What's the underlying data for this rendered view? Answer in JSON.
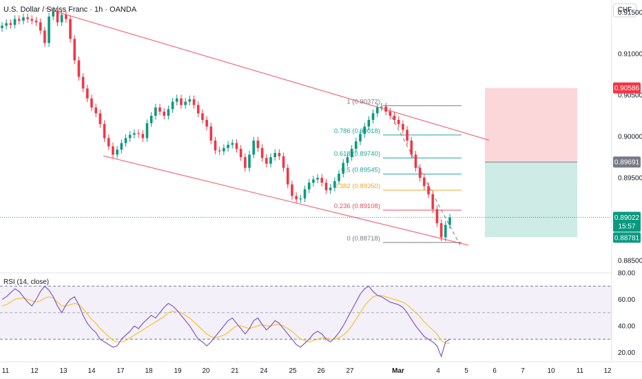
{
  "chart_data": {
    "type": "candlestick",
    "title": "U.S. Dollar / Swiss Franc · 1h · OANDA",
    "currency": "CHF",
    "y_ticks": [
      "0.91500",
      "0.91000",
      "0.90500",
      "0.90000",
      "0.89500",
      "0.88500"
    ],
    "x_ticks": [
      "11",
      "12",
      "13",
      "14",
      "17",
      "18",
      "19",
      "20",
      "21",
      "24",
      "25",
      "26",
      "27",
      "Mar",
      "4",
      "5",
      "6",
      "7",
      "10",
      "11",
      "12"
    ],
    "ylim": [
      0.8835,
      0.9165
    ],
    "price_badges": {
      "tp": "0.90586",
      "entry": "0.89691",
      "last": "0.89022",
      "countdown": "15:57",
      "stop": "0.88781"
    },
    "fib_levels": [
      {
        "label": "1 (0.90372)",
        "value": 0.90372,
        "color": "#787b86"
      },
      {
        "label": "0.786 (0.90018)",
        "value": 0.90018,
        "color": "#22a39a"
      },
      {
        "label": "0.618 (0.89740)",
        "value": 0.8974,
        "color": "#22a39a"
      },
      {
        "label": "0.5 (0.89545)",
        "value": 0.89545,
        "color": "#22a39a"
      },
      {
        "label": "0.382 (0.89350)",
        "value": 0.8935,
        "color": "#f2a626"
      },
      {
        "label": "0.236 (0.89108)",
        "value": 0.89108,
        "color": "#e84c5a"
      },
      {
        "label": "0 (0.88718)",
        "value": 0.88718,
        "color": "#787b86"
      }
    ],
    "price_series": [
      0.9134,
      0.9137,
      0.9135,
      0.9142,
      0.914,
      0.9144,
      0.9142,
      0.914,
      0.9138,
      0.9128,
      0.9113,
      0.9145,
      0.9152,
      0.9138,
      0.9147,
      0.9142,
      0.9118,
      0.9092,
      0.9072,
      0.9058,
      0.9046,
      0.9035,
      0.9028,
      0.9015,
      0.8998,
      0.8988,
      0.8978,
      0.8984,
      0.8992,
      0.8998,
      0.9002,
      0.9004,
      0.9003,
      0.8998,
      0.9016,
      0.9025,
      0.9035,
      0.903,
      0.9025,
      0.9033,
      0.9042,
      0.9046,
      0.9038,
      0.9042,
      0.9045,
      0.9038,
      0.9028,
      0.902,
      0.9012,
      0.8995,
      0.8983,
      0.8982,
      0.8986,
      0.899,
      0.8992,
      0.8985,
      0.8975,
      0.8962,
      0.8978,
      0.8995,
      0.8986,
      0.8974,
      0.8967,
      0.8975,
      0.898,
      0.8976,
      0.8962,
      0.8942,
      0.8928,
      0.8924,
      0.8925,
      0.8936,
      0.8944,
      0.8948,
      0.895,
      0.8944,
      0.8935,
      0.8938,
      0.8946,
      0.8955,
      0.8968,
      0.8975,
      0.8985,
      0.8994,
      0.9003,
      0.9012,
      0.902,
      0.9028,
      0.9035,
      0.9036,
      0.903,
      0.9025,
      0.902,
      0.9015,
      0.9008,
      0.8995,
      0.8978,
      0.8962,
      0.895,
      0.894,
      0.893,
      0.8912,
      0.8895,
      0.8878,
      0.8893,
      0.8902
    ],
    "rsi": {
      "title": "RSI (14, close)",
      "y_ticks": [
        "80.00",
        "60.00",
        "40.00",
        "20.00"
      ],
      "ylim": [
        13,
        80
      ],
      "upper": 70,
      "middle": 50,
      "lower": 30,
      "values": [
        60,
        62,
        65,
        68,
        66,
        62,
        58,
        55,
        60,
        66,
        70,
        67,
        62,
        55,
        50,
        56,
        60,
        62,
        56,
        48,
        42,
        38,
        35,
        30,
        28,
        26,
        24,
        25,
        30,
        33,
        36,
        40,
        38,
        42,
        45,
        48,
        46,
        50,
        54,
        57,
        55,
        52,
        48,
        44,
        40,
        35,
        30,
        28,
        25,
        28,
        32,
        36,
        40,
        44,
        46,
        42,
        38,
        34,
        38,
        44,
        46,
        41,
        37,
        40,
        44,
        42,
        38,
        34,
        30,
        26,
        24,
        27,
        30,
        34,
        36,
        34,
        30,
        28,
        31,
        35,
        40,
        46,
        52,
        58,
        64,
        68,
        70,
        66,
        63,
        62,
        60,
        58,
        57,
        56,
        54,
        50,
        45,
        40,
        36,
        32,
        30,
        28,
        25,
        17,
        28,
        30
      ],
      "ma": [
        55,
        56,
        58,
        60,
        61,
        61,
        60,
        59,
        58,
        59,
        61,
        62,
        61,
        58,
        55,
        55,
        56,
        57,
        56,
        53,
        49,
        45,
        42,
        38,
        35,
        32,
        29,
        28,
        28,
        29,
        31,
        33,
        35,
        37,
        39,
        41,
        43,
        45,
        47,
        50,
        51,
        51,
        50,
        48,
        46,
        43,
        40,
        37,
        34,
        32,
        31,
        32,
        33,
        35,
        38,
        40,
        40,
        39,
        38,
        39,
        40,
        41,
        40,
        40,
        41,
        41,
        40,
        38,
        36,
        33,
        30,
        29,
        28,
        29,
        30,
        31,
        31,
        30,
        30,
        31,
        33,
        36,
        40,
        45,
        50,
        55,
        59,
        62,
        63,
        63,
        62,
        61,
        60,
        59,
        58,
        56,
        53,
        50,
        47,
        43,
        40,
        37,
        34,
        29,
        27,
        27
      ]
    }
  }
}
